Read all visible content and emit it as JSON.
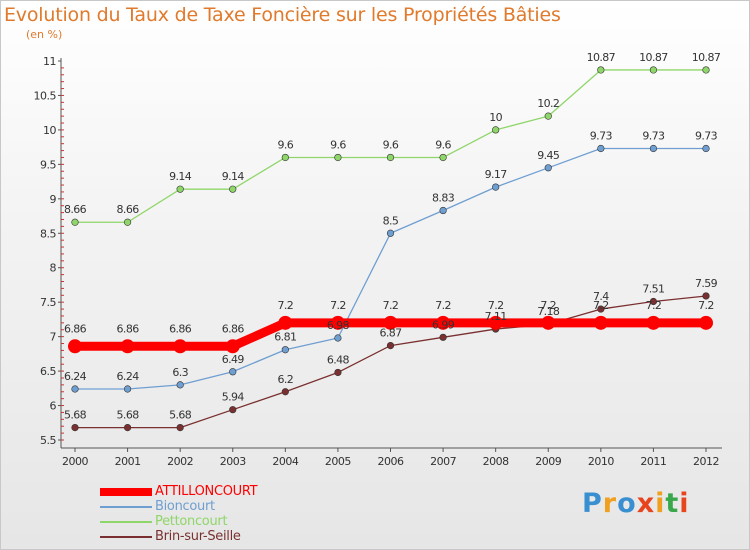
{
  "title": "Evolution du Taux de Taxe Foncière sur les Propriétés Bâties",
  "subtitle": "(en %)",
  "logo_text": "Proxiti",
  "colors": {
    "title": "#e07a2c",
    "axis_text": "#333333",
    "grid_marks": "#cc3333"
  },
  "chart_data": {
    "type": "line",
    "x": [
      2000,
      2001,
      2002,
      2003,
      2004,
      2005,
      2006,
      2007,
      2008,
      2009,
      2010,
      2011,
      2012
    ],
    "ylim": [
      5.5,
      11
    ],
    "yticks": [
      5.5,
      6,
      6.5,
      7,
      7.5,
      8,
      8.5,
      9,
      9.5,
      10,
      10.5,
      11
    ],
    "ytick_labels": [
      "5.5",
      "6",
      "6.5",
      "7",
      "7.5",
      "8",
      "8.5",
      "9",
      "9.5",
      "10",
      "10.5",
      "11"
    ],
    "legend_position": "bottom-left",
    "series": [
      {
        "name": "ATTILLONCOURT",
        "color": "#ff0000",
        "values": [
          6.86,
          6.86,
          6.86,
          6.86,
          7.2,
          7.2,
          7.2,
          7.2,
          7.2,
          7.2,
          7.2,
          7.2,
          7.2
        ],
        "labels": [
          "6.86",
          "6.86",
          "6.86",
          "6.86",
          "7.2",
          "7.2",
          "7.2",
          "7.2",
          "7.2",
          "7.2",
          "7.2",
          "7.2",
          "7.2"
        ]
      },
      {
        "name": "Bioncourt",
        "color": "#6f9fd1",
        "values": [
          6.24,
          6.24,
          6.3,
          6.49,
          6.81,
          6.98,
          8.5,
          8.83,
          9.17,
          9.45,
          9.73,
          9.73,
          9.73
        ],
        "labels": [
          "6.24",
          "6.24",
          "6.3",
          "6.49",
          "6.81",
          "6.98",
          "8.5",
          "8.83",
          "9.17",
          "9.45",
          "9.73",
          "9.73",
          "9.73"
        ]
      },
      {
        "name": "Pettoncourt",
        "color": "#8fd66a",
        "values": [
          8.66,
          8.66,
          9.14,
          9.14,
          9.6,
          9.6,
          9.6,
          9.6,
          10,
          10.2,
          10.87,
          10.87,
          10.87
        ],
        "labels": [
          "8.66",
          "8.66",
          "9.14",
          "9.14",
          "9.6",
          "9.6",
          "9.6",
          "9.6",
          "10",
          "10.2",
          "10.87",
          "10.87",
          "10.87"
        ]
      },
      {
        "name": "Brin-sur-Seille",
        "color": "#7a3030",
        "values": [
          5.68,
          5.68,
          5.68,
          5.94,
          6.2,
          6.48,
          6.87,
          6.99,
          7.11,
          7.18,
          7.4,
          7.51,
          7.59
        ],
        "labels": [
          "5.68",
          "5.68",
          "5.68",
          "5.94",
          "6.2",
          "6.48",
          "6.87",
          "6.99",
          "7.11",
          "7.18",
          "7.4",
          "7.51",
          "7.59"
        ]
      }
    ]
  }
}
